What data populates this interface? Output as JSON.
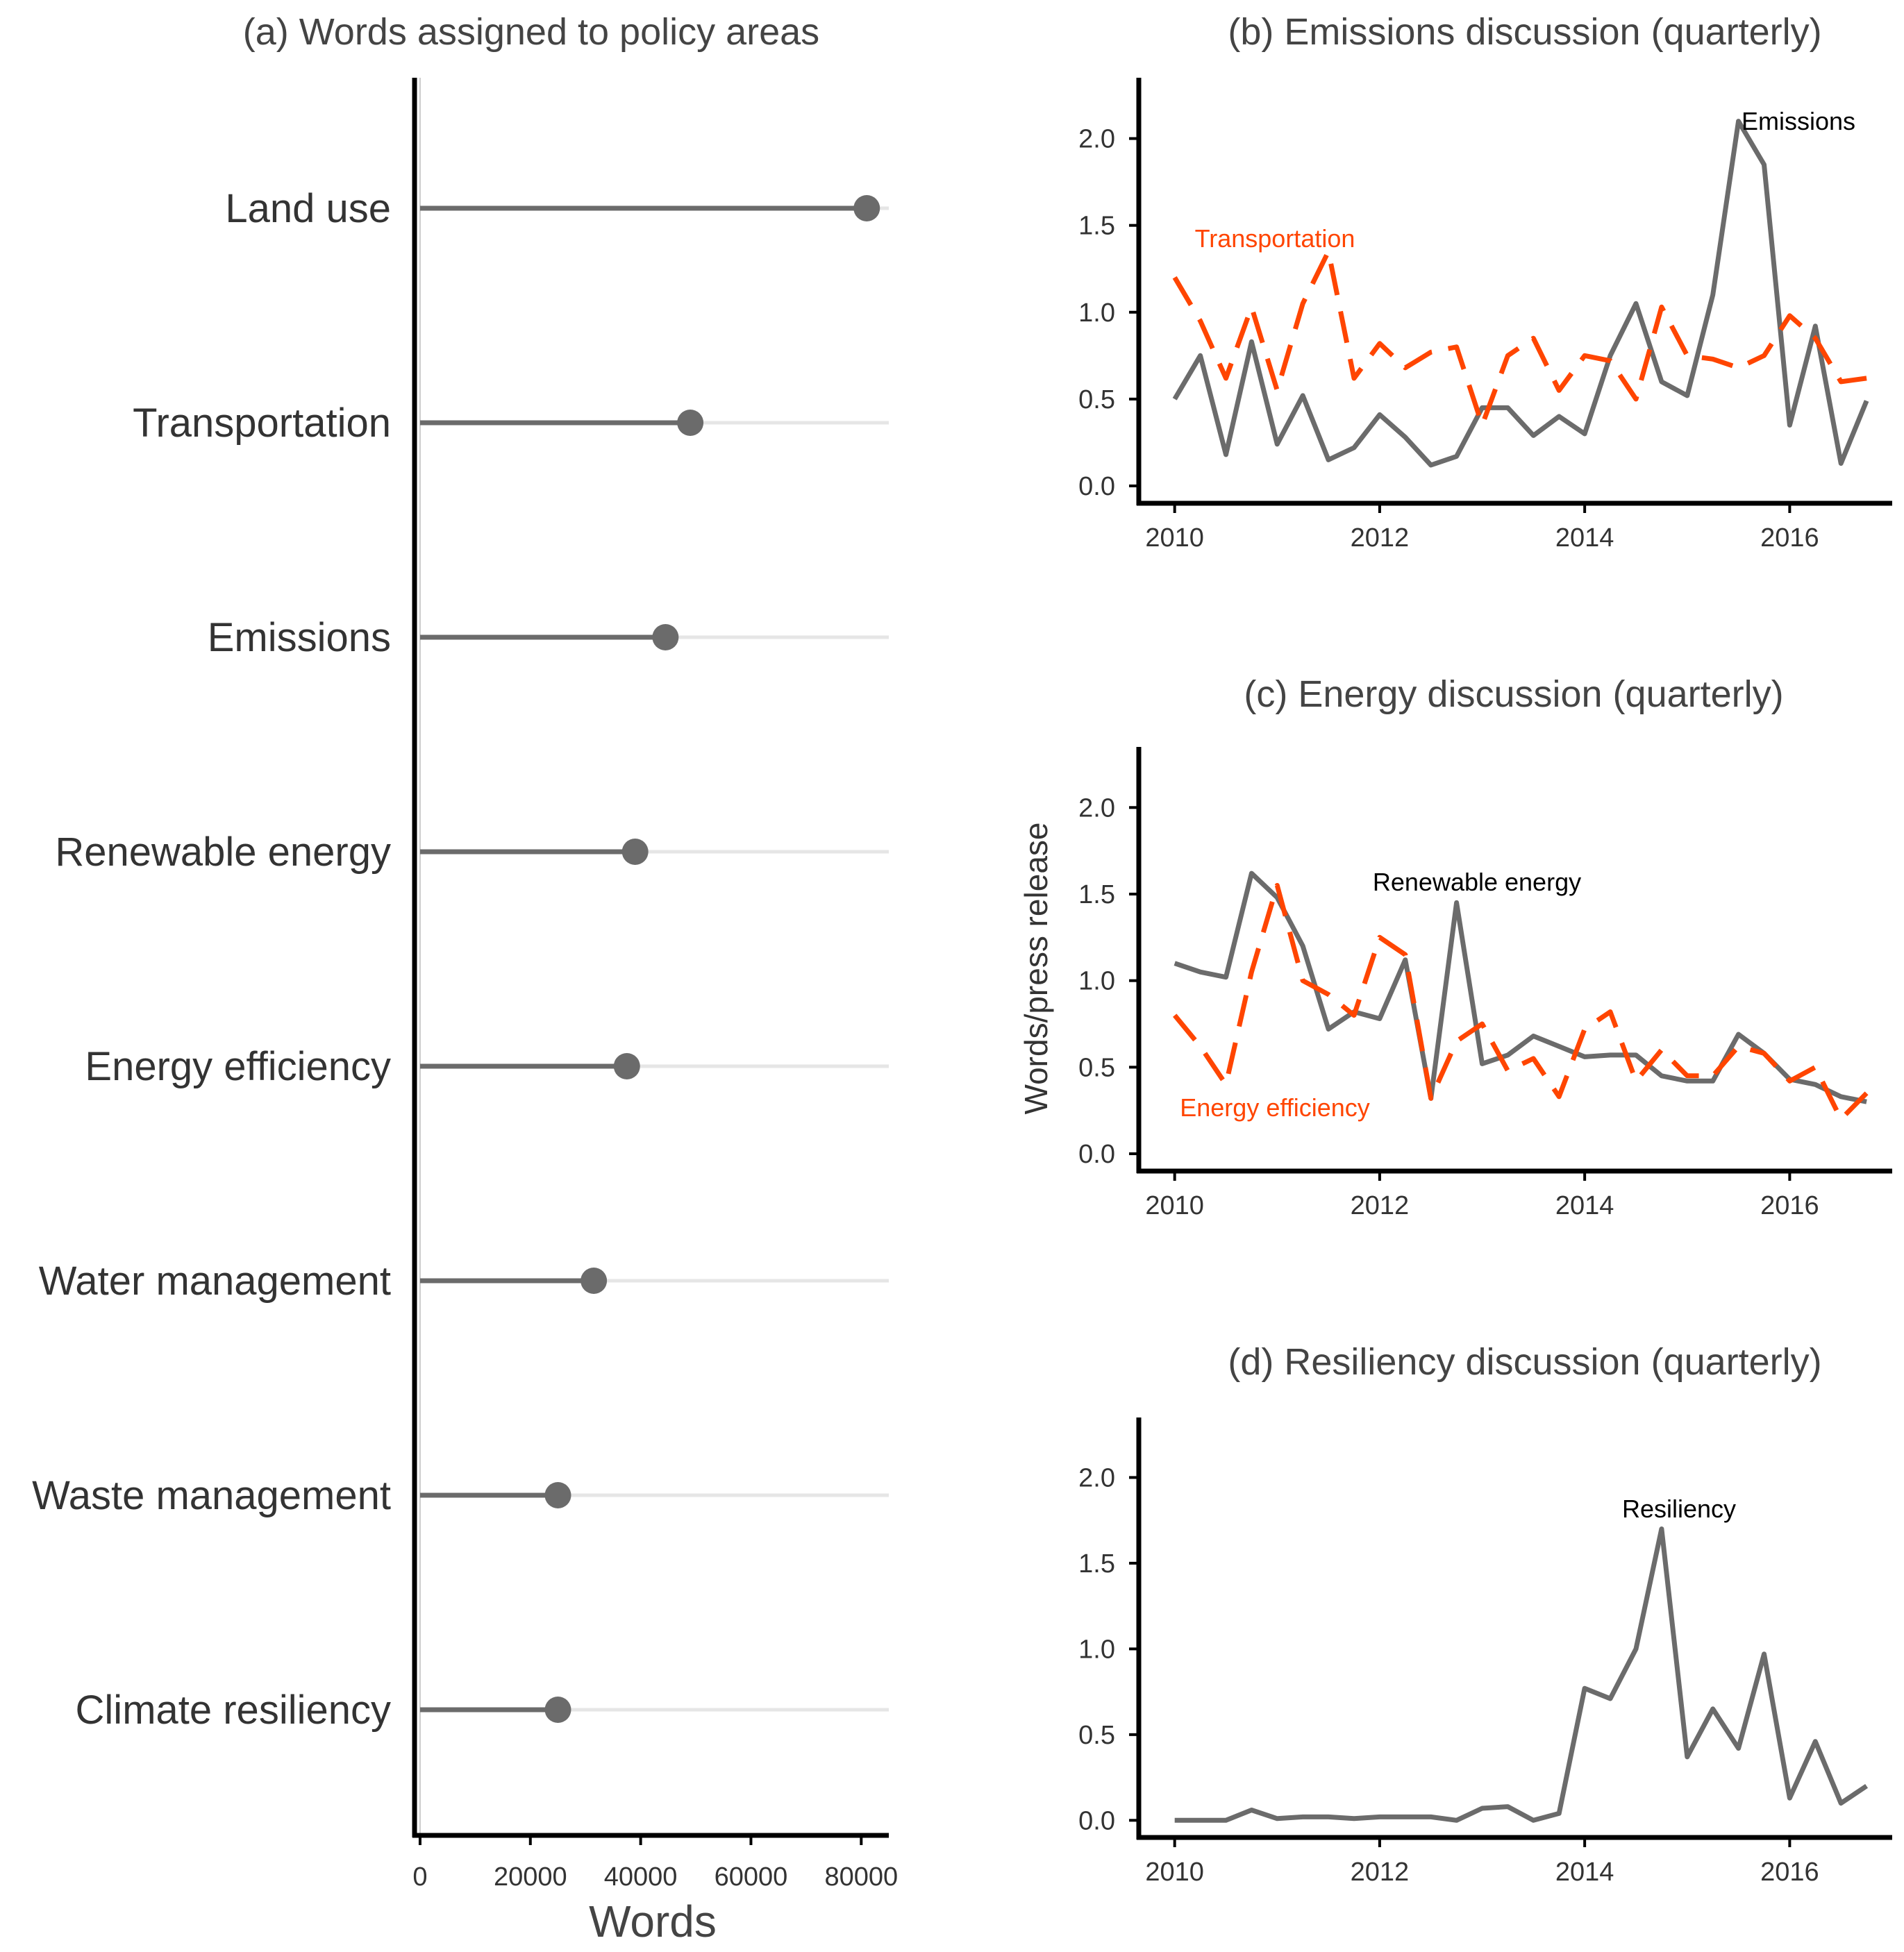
{
  "colors": {
    "grey": "#6b6b6b",
    "orange": "#ff4500",
    "axis": "#000000",
    "grid": "#e6e6e6"
  },
  "chart_data": [
    {
      "id": "a",
      "type": "lollipop",
      "title": "(a) Words assigned to policy areas",
      "xlabel": "Words",
      "ylabel": "",
      "xlim": [
        -1000,
        85000
      ],
      "xticks": [
        0,
        20000,
        40000,
        60000,
        80000
      ],
      "xtick_labels": [
        "0",
        "20000",
        "40000",
        "60000",
        "80000"
      ],
      "categories": [
        "Land use",
        "Transportation",
        "Emissions",
        "Renewable energy",
        "Energy efficiency",
        "Water management",
        "Waste management",
        "Climate resiliency"
      ],
      "values": [
        81000,
        49000,
        44500,
        39000,
        37500,
        31500,
        25000,
        25000
      ]
    },
    {
      "id": "b",
      "type": "line",
      "title": "(b) Emissions discussion (quarterly)",
      "xlabel": "",
      "ylabel": "",
      "xlim": [
        2009.65,
        2017.0
      ],
      "ylim": [
        -0.1,
        2.35
      ],
      "xticks": [
        2010,
        2012,
        2014,
        2016
      ],
      "xtick_labels": [
        "2010",
        "2012",
        "2014",
        "2016"
      ],
      "yticks": [
        0,
        0.5,
        1,
        1.5,
        2
      ],
      "ytick_labels": [
        "0.0",
        "0.5",
        "1.0",
        "1.5",
        "2.0"
      ],
      "x": [
        2010,
        2010.25,
        2010.5,
        2010.75,
        2011,
        2011.25,
        2011.5,
        2011.75,
        2012,
        2012.25,
        2012.5,
        2012.75,
        2013,
        2013.25,
        2013.5,
        2013.75,
        2014,
        2014.25,
        2014.5,
        2014.75,
        2015,
        2015.25,
        2015.5,
        2015.75,
        2016,
        2016.25,
        2016.5,
        2016.75
      ],
      "series": [
        {
          "name": "Emissions",
          "label": "Emissions",
          "color": "#6b6b6b",
          "dash": false,
          "values": [
            0.5,
            0.75,
            0.18,
            0.83,
            0.24,
            0.52,
            0.15,
            0.22,
            0.41,
            0.28,
            0.12,
            0.17,
            0.45,
            0.45,
            0.29,
            0.4,
            0.3,
            0.75,
            1.05,
            0.6,
            0.52,
            1.1,
            2.1,
            1.85,
            0.35,
            0.92,
            0.13,
            0.49
          ]
        },
        {
          "name": "Transportation",
          "label": "Transportation",
          "color": "#ff4500",
          "dash": true,
          "values": [
            1.2,
            0.95,
            0.62,
            1.03,
            0.55,
            1.05,
            1.35,
            0.62,
            0.82,
            0.68,
            0.77,
            0.8,
            0.35,
            0.75,
            0.85,
            0.55,
            0.75,
            0.72,
            0.5,
            1.03,
            0.75,
            0.73,
            0.68,
            0.75,
            0.98,
            0.85,
            0.6,
            0.62
          ]
        }
      ]
    },
    {
      "id": "c",
      "type": "line",
      "title": "(c) Energy discussion (quarterly)",
      "xlabel": "",
      "ylabel": "Words/press release",
      "xlim": [
        2009.65,
        2017.0
      ],
      "ylim": [
        -0.1,
        2.35
      ],
      "xticks": [
        2010,
        2012,
        2014,
        2016
      ],
      "xtick_labels": [
        "2010",
        "2012",
        "2014",
        "2016"
      ],
      "yticks": [
        0,
        0.5,
        1,
        1.5,
        2
      ],
      "ytick_labels": [
        "0.0",
        "0.5",
        "1.0",
        "1.5",
        "2.0"
      ],
      "x": [
        2010,
        2010.25,
        2010.5,
        2010.75,
        2011,
        2011.25,
        2011.5,
        2011.75,
        2012,
        2012.25,
        2012.5,
        2012.75,
        2013,
        2013.25,
        2013.5,
        2013.75,
        2014,
        2014.25,
        2014.5,
        2014.75,
        2015,
        2015.25,
        2015.5,
        2015.75,
        2016,
        2016.25,
        2016.5,
        2016.75
      ],
      "series": [
        {
          "name": "Renewable energy",
          "label": "Renewable energy",
          "color": "#6b6b6b",
          "dash": false,
          "values": [
            1.1,
            1.05,
            1.02,
            1.62,
            1.48,
            1.2,
            0.72,
            0.82,
            0.78,
            1.12,
            0.32,
            1.45,
            0.52,
            0.57,
            0.68,
            0.62,
            0.56,
            0.57,
            0.57,
            0.45,
            0.42,
            0.42,
            0.69,
            0.58,
            0.43,
            0.4,
            0.33,
            0.3
          ]
        },
        {
          "name": "Energy efficiency",
          "label": "Energy efficiency",
          "color": "#ff4500",
          "dash": true,
          "values": [
            0.8,
            0.62,
            0.4,
            1.05,
            1.55,
            1.0,
            0.92,
            0.8,
            1.25,
            1.15,
            0.32,
            0.65,
            0.75,
            0.48,
            0.55,
            0.33,
            0.72,
            0.82,
            0.42,
            0.6,
            0.45,
            0.45,
            0.62,
            0.58,
            0.42,
            0.5,
            0.2,
            0.35
          ]
        }
      ]
    },
    {
      "id": "d",
      "type": "line",
      "title": "(d) Resiliency discussion (quarterly)",
      "xlabel": "",
      "ylabel": "",
      "xlim": [
        2009.65,
        2017.0
      ],
      "ylim": [
        -0.1,
        2.35
      ],
      "xticks": [
        2010,
        2012,
        2014,
        2016
      ],
      "xtick_labels": [
        "2010",
        "2012",
        "2014",
        "2016"
      ],
      "yticks": [
        0,
        0.5,
        1,
        1.5,
        2
      ],
      "ytick_labels": [
        "0.0",
        "0.5",
        "1.0",
        "1.5",
        "2.0"
      ],
      "x": [
        2010,
        2010.25,
        2010.5,
        2010.75,
        2011,
        2011.25,
        2011.5,
        2011.75,
        2012,
        2012.25,
        2012.5,
        2012.75,
        2013,
        2013.25,
        2013.5,
        2013.75,
        2014,
        2014.25,
        2014.5,
        2014.75,
        2015,
        2015.25,
        2015.5,
        2015.75,
        2016,
        2016.25,
        2016.5,
        2016.75
      ],
      "series": [
        {
          "name": "Resiliency",
          "label": "Resiliency",
          "color": "#6b6b6b",
          "dash": false,
          "values": [
            0.0,
            0.0,
            0.0,
            0.06,
            0.01,
            0.02,
            0.02,
            0.01,
            0.02,
            0.02,
            0.02,
            0.0,
            0.07,
            0.08,
            0.0,
            0.04,
            0.77,
            0.71,
            1.0,
            1.7,
            0.37,
            0.65,
            0.42,
            0.97,
            0.13,
            0.46,
            0.1,
            0.2
          ]
        }
      ]
    }
  ]
}
